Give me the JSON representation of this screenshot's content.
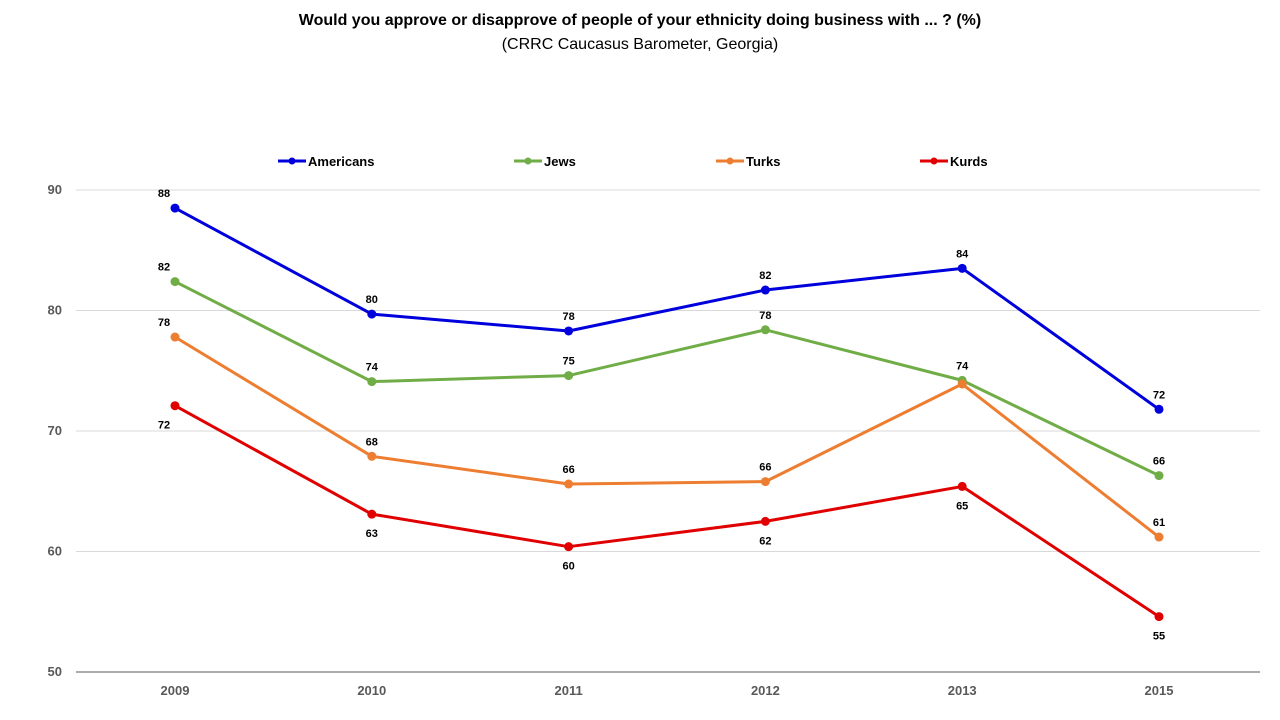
{
  "chart_data": {
    "type": "line",
    "title": "Would you approve or disapprove of people of your ethnicity doing business with ... ? (%)",
    "subtitle": "(CRRC Caucasus Barometer, Georgia)",
    "xlabel": "",
    "ylabel": "",
    "categories": [
      "2009",
      "2010",
      "2011",
      "2012",
      "2013",
      "2015"
    ],
    "ylim": [
      50,
      90
    ],
    "yticks": [
      50,
      60,
      70,
      80,
      90
    ],
    "grid": "horizontal",
    "legend_position": "top",
    "series": [
      {
        "name": "Americans",
        "color": "#0000DC",
        "values": [
          88.5,
          79.7,
          78.3,
          81.7,
          83.5,
          71.8
        ],
        "labels": [
          "88",
          "80",
          "78",
          "82",
          "84",
          "72"
        ],
        "label_pos": [
          "above",
          "above",
          "above",
          "above",
          "above",
          "above"
        ]
      },
      {
        "name": "Jews",
        "color": "#70AD47",
        "values": [
          82.4,
          74.1,
          74.6,
          78.4,
          74.2,
          66.3
        ],
        "labels": [
          "82",
          "74",
          "75",
          "78",
          "74",
          "66"
        ],
        "label_pos": [
          "above",
          "above",
          "above",
          "above",
          "above",
          "above"
        ]
      },
      {
        "name": "Turks",
        "color": "#ED7D31",
        "values": [
          77.8,
          67.9,
          65.6,
          65.8,
          73.9,
          61.2
        ],
        "labels": [
          "78",
          "68",
          "66",
          "66",
          "",
          "61"
        ],
        "label_pos": [
          "above",
          "above",
          "above",
          "above",
          "above",
          "above"
        ]
      },
      {
        "name": "Kurds",
        "color": "#E00000",
        "values": [
          72.1,
          63.1,
          60.4,
          62.5,
          65.4,
          54.6
        ],
        "labels": [
          "72",
          "63",
          "60",
          "62",
          "65",
          "55"
        ],
        "label_pos": [
          "below",
          "below",
          "below",
          "below",
          "below",
          "below"
        ]
      }
    ]
  }
}
